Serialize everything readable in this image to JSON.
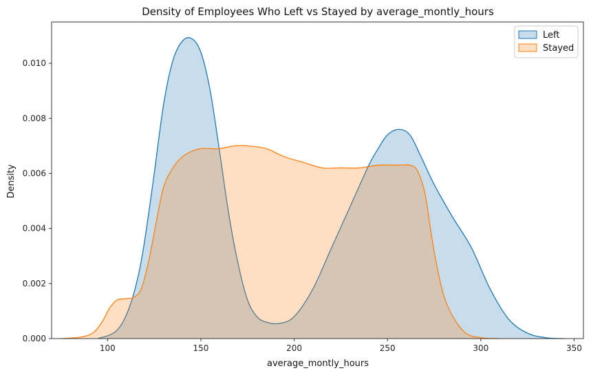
{
  "chart_data": {
    "type": "area",
    "title": "Density of Employees Who Left vs Stayed by average_montly_hours",
    "xlabel": "average_montly_hours",
    "ylabel": "Density",
    "xlim": [
      70,
      355
    ],
    "ylim": [
      0,
      0.0115
    ],
    "xticks": [
      100,
      150,
      200,
      250,
      300,
      350
    ],
    "xtick_labels": [
      "100",
      "150",
      "200",
      "250",
      "300",
      "350"
    ],
    "yticks": [
      0,
      0.002,
      0.004,
      0.006,
      0.008,
      0.01
    ],
    "ytick_labels": [
      "0.000",
      "0.002",
      "0.004",
      "0.006",
      "0.008",
      "0.010"
    ],
    "grid": false,
    "legend_position": "top-right",
    "series": [
      {
        "name": "Left",
        "color": "#1f77b4",
        "fill": "rgba(31,119,180,0.25)",
        "x": [
          95,
          105,
          112,
          118,
          124,
          130,
          135,
          140,
          145,
          150,
          155,
          160,
          165,
          170,
          175,
          180,
          185,
          192,
          200,
          210,
          220,
          230,
          240,
          245,
          250,
          256,
          262,
          268,
          275,
          285,
          295,
          305,
          315,
          325,
          335,
          345
        ],
        "y": [
          0.0,
          0.0003,
          0.0012,
          0.0028,
          0.0055,
          0.0085,
          0.0101,
          0.0108,
          0.0109,
          0.0104,
          0.009,
          0.0068,
          0.0045,
          0.0027,
          0.0014,
          0.0008,
          0.0006,
          0.00055,
          0.0008,
          0.0018,
          0.0033,
          0.0048,
          0.0063,
          0.0069,
          0.0074,
          0.0076,
          0.0074,
          0.0066,
          0.0056,
          0.0044,
          0.0033,
          0.0018,
          0.0007,
          0.0002,
          3e-05,
          0.0
        ]
      },
      {
        "name": "Stayed",
        "color": "#ff7f0e",
        "fill": "rgba(255,127,14,0.25)",
        "x": [
          75,
          85,
          92,
          97,
          101,
          105,
          110,
          114,
          118,
          122,
          126,
          130,
          135,
          140,
          145,
          150,
          155,
          160,
          168,
          175,
          185,
          195,
          205,
          215,
          225,
          235,
          245,
          255,
          262,
          266,
          270,
          273,
          276,
          280,
          285,
          292,
          300,
          310
        ],
        "y": [
          0.0,
          5e-05,
          0.0002,
          0.0006,
          0.0011,
          0.0014,
          0.00145,
          0.0015,
          0.0018,
          0.0028,
          0.0042,
          0.0055,
          0.0062,
          0.0066,
          0.0068,
          0.0069,
          0.0069,
          0.0069,
          0.007,
          0.007,
          0.0069,
          0.0066,
          0.0064,
          0.0062,
          0.0062,
          0.0062,
          0.0063,
          0.0063,
          0.0063,
          0.0061,
          0.0053,
          0.004,
          0.0028,
          0.0016,
          0.0008,
          0.0002,
          3e-05,
          0.0
        ]
      }
    ]
  }
}
